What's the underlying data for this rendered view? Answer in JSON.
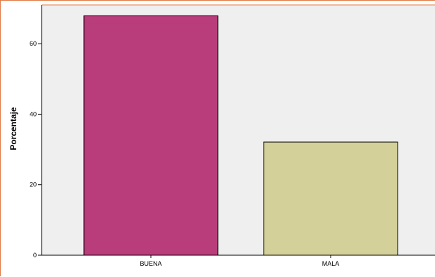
{
  "chart_data": {
    "type": "bar",
    "categories": [
      "BUENA",
      "MALA"
    ],
    "values": [
      67.9,
      32.1
    ],
    "ylabel": "Porcentaje",
    "xlabel": "",
    "ylim": [
      0,
      71
    ],
    "yticks": [
      0,
      20,
      40,
      60
    ],
    "colors": {
      "plot_background": "#efefef",
      "bar_colors": [
        "#b93d7a",
        "#d3d09a"
      ],
      "bar_outline": "#000000",
      "frame_accent": "#e07a45"
    },
    "grid": false,
    "legend": "none"
  }
}
